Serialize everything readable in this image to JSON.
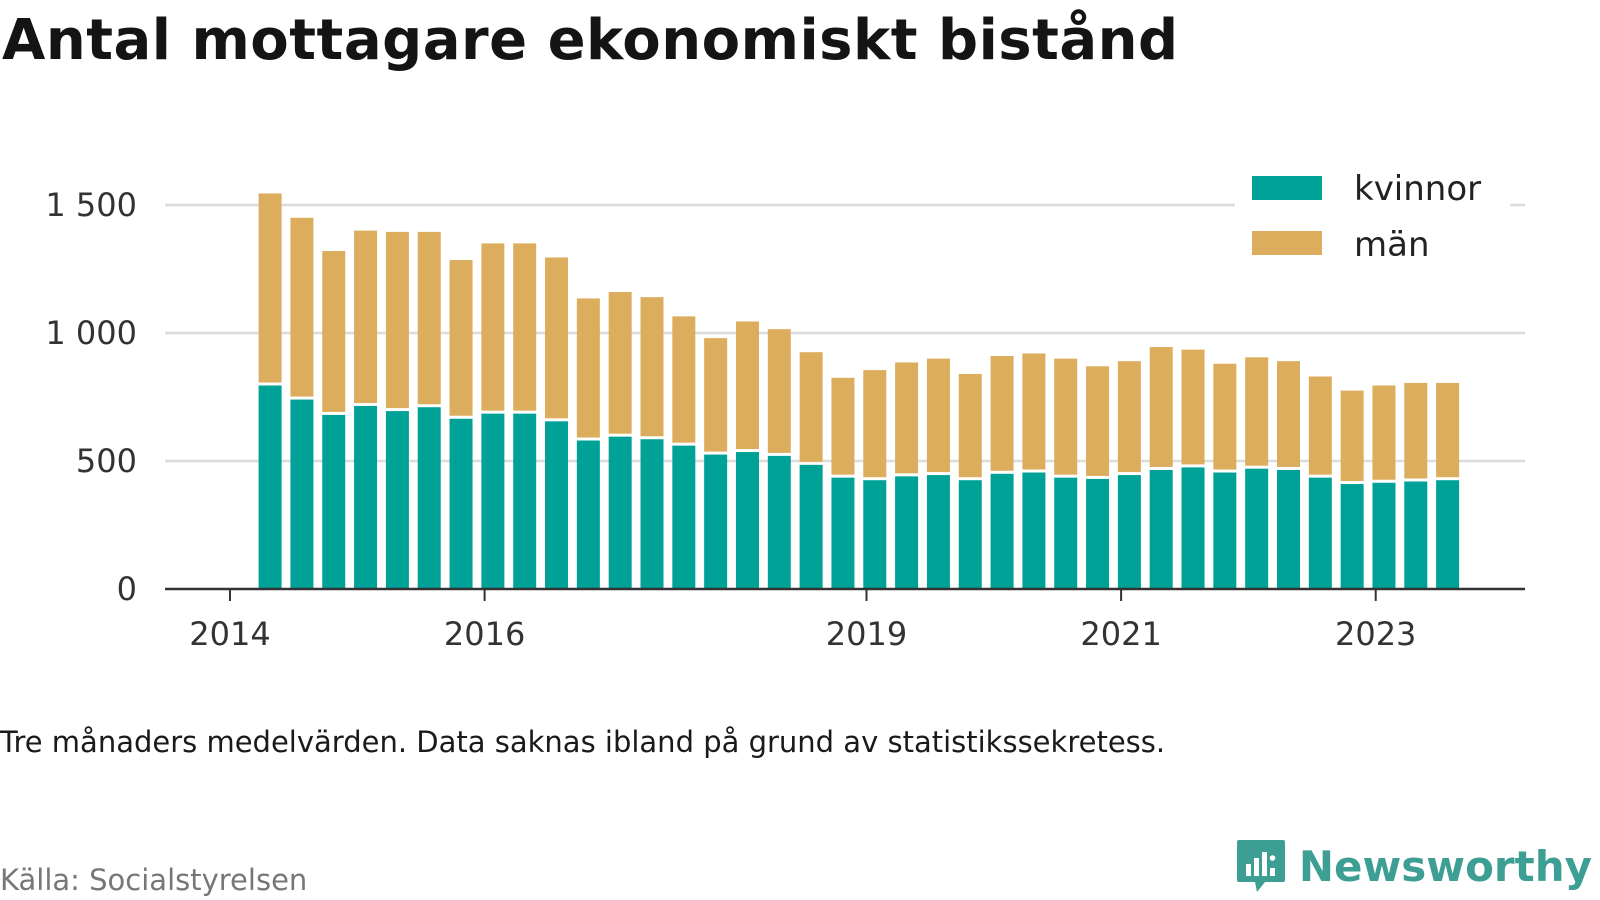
{
  "title": "Antal mottagare ekonomiskt bistånd",
  "note": "Tre månaders medelvärden. Data saknas ibland på grund av statistikssekretess.",
  "source": "Källa: Socialstyrelsen",
  "brand": {
    "name": "Newsworthy",
    "icon": "newsworthy-bar-chart-logo-icon",
    "color": "#3d9e93"
  },
  "chart_data": {
    "type": "bar",
    "stacked": true,
    "title": "Antal mottagare ekonomiskt bistånd",
    "xlabel": "",
    "ylabel": "",
    "ylim": [
      0,
      1650
    ],
    "yticks": [
      0,
      500,
      1000,
      1500
    ],
    "ytick_labels": [
      "0",
      "500",
      "1 000",
      "1 500"
    ],
    "x_tick_labels": [
      {
        "label": "2014",
        "at": "2014-01"
      },
      {
        "label": "2016",
        "at": "2016-01"
      },
      {
        "label": "2019",
        "at": "2019-01"
      },
      {
        "label": "2021",
        "at": "2021-01"
      },
      {
        "label": "2023",
        "at": "2023-01"
      }
    ],
    "grid": true,
    "legend_position": "top-right",
    "categories": [
      "2014-Q2",
      "2014-Q3",
      "2014-Q4",
      "2015-Q1",
      "2015-Q2",
      "2015-Q3",
      "2015-Q4",
      "2016-Q1",
      "2016-Q2",
      "2016-Q3",
      "2016-Q4",
      "2017-Q1",
      "2017-Q2",
      "2017-Q3",
      "2017-Q4",
      "2018-Q1",
      "2018-Q2",
      "2018-Q3",
      "2018-Q4",
      "2019-Q1",
      "2019-Q2",
      "2019-Q3",
      "2019-Q4",
      "2020-Q1",
      "2020-Q2",
      "2020-Q3",
      "2020-Q4",
      "2021-Q1",
      "2021-Q2",
      "2021-Q3",
      "2021-Q4",
      "2022-Q1",
      "2022-Q2",
      "2022-Q3",
      "2022-Q4",
      "2023-Q1",
      "2023-Q2",
      "2023-Q3"
    ],
    "series": [
      {
        "name": "kvinnor",
        "color": "#00a196",
        "values": [
          795,
          740,
          680,
          715,
          695,
          710,
          665,
          685,
          685,
          655,
          580,
          595,
          585,
          560,
          525,
          535,
          520,
          485,
          435,
          425,
          440,
          445,
          425,
          450,
          455,
          435,
          430,
          445,
          465,
          475,
          455,
          470,
          465,
          435,
          410,
          415,
          420,
          425
        ]
      },
      {
        "name": "män",
        "color": "#dbad5c",
        "values": [
          750,
          710,
          640,
          685,
          700,
          685,
          620,
          665,
          665,
          640,
          555,
          565,
          555,
          505,
          455,
          510,
          495,
          440,
          390,
          430,
          445,
          455,
          415,
          460,
          465,
          465,
          440,
          445,
          480,
          460,
          425,
          435,
          425,
          395,
          365,
          380,
          385,
          380
        ]
      }
    ]
  }
}
